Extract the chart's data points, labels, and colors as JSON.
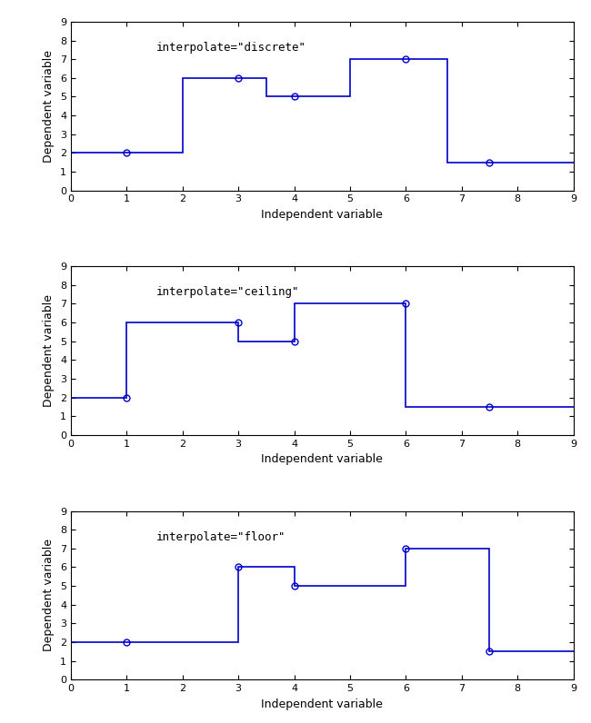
{
  "x_pts": [
    1,
    3,
    4,
    6,
    7.5
  ],
  "y_pts": [
    2,
    6,
    5,
    7,
    1.5
  ],
  "x_min": 0,
  "x_max": 9,
  "y_min": 0,
  "y_max": 9,
  "x_ticks": [
    0,
    1,
    2,
    3,
    4,
    5,
    6,
    7,
    8,
    9
  ],
  "y_ticks": [
    0,
    1,
    2,
    3,
    4,
    5,
    6,
    7,
    8,
    9
  ],
  "xlabel": "Independent variable",
  "ylabel": "Dependent variable",
  "labels": [
    "interpolate=\"discrete\"",
    "interpolate=\"ceiling\"",
    "interpolate=\"floor\""
  ],
  "line_color": "#0000cc",
  "marker_color": "#0000cc",
  "bg_color": "#ffffff",
  "label_font_size": 9,
  "tick_font_size": 8,
  "marker_size": 5,
  "figwidth": 6.5,
  "figheight": 7.96,
  "dpi": 100
}
